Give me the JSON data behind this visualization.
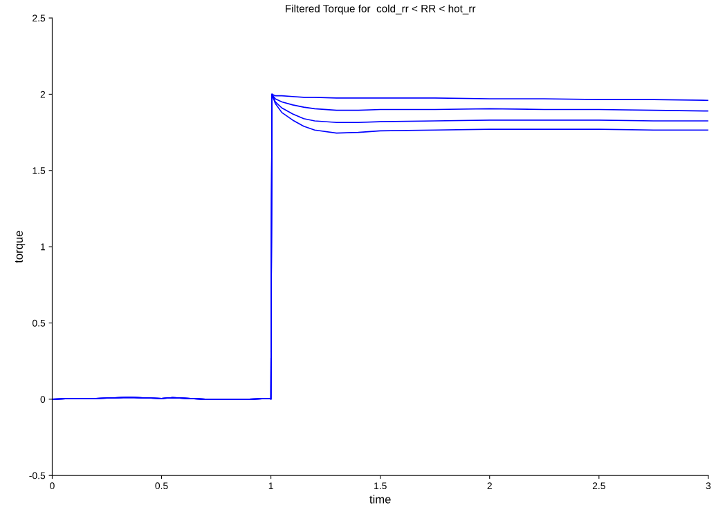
{
  "chart_data": {
    "type": "line",
    "title": "Filtered Torque for  cold_rr < RR < hot_rr",
    "xlabel": "time",
    "ylabel": "torque",
    "x": [
      0,
      0.1,
      0.2,
      0.35,
      0.5,
      0.55,
      0.7,
      0.9,
      0.999,
      1.0,
      1.003,
      1.005,
      1.02,
      1.05,
      1.1,
      1.15,
      1.2,
      1.3,
      1.4,
      1.5,
      1.75,
      2,
      2.25,
      2.5,
      2.75,
      3
    ],
    "series": [
      {
        "color": "#0000ff",
        "values": [
          0,
          0.005,
          0.005,
          0.012,
          0.005,
          0.01,
          0,
          0,
          0.005,
          0,
          1.3,
          2.0,
          1.99,
          1.99,
          1.985,
          1.98,
          1.98,
          1.975,
          1.975,
          1.975,
          1.975,
          1.97,
          1.97,
          1.965,
          1.965,
          1.96
        ]
      },
      {
        "color": "#0000ff",
        "values": [
          0,
          0.005,
          0.005,
          0.012,
          0.005,
          0.01,
          0,
          0,
          0.005,
          0,
          1.3,
          2.0,
          1.97,
          1.95,
          1.93,
          1.915,
          1.905,
          1.895,
          1.895,
          1.9,
          1.9,
          1.905,
          1.9,
          1.9,
          1.895,
          1.89
        ]
      },
      {
        "color": "#0000ff",
        "values": [
          0,
          0.005,
          0.005,
          0.012,
          0.005,
          0.01,
          0,
          0,
          0.005,
          0,
          1.3,
          2.0,
          1.95,
          1.91,
          1.87,
          1.84,
          1.825,
          1.815,
          1.815,
          1.82,
          1.825,
          1.83,
          1.83,
          1.83,
          1.825,
          1.825
        ]
      },
      {
        "color": "#0000ff",
        "values": [
          0,
          0.005,
          0.005,
          0.012,
          0.005,
          0.01,
          0,
          0,
          0.005,
          0,
          1.3,
          2.0,
          1.94,
          1.88,
          1.83,
          1.79,
          1.765,
          1.745,
          1.75,
          1.76,
          1.765,
          1.77,
          1.77,
          1.77,
          1.765,
          1.765
        ]
      }
    ],
    "xlim": [
      0,
      3
    ],
    "xticks": [
      0,
      0.5,
      1,
      1.5,
      2,
      2.5,
      3
    ],
    "ylim": [
      -0.5,
      2.5
    ],
    "yticks": [
      -0.5,
      0,
      0.5,
      1,
      1.5,
      2,
      2.5
    ],
    "grid": false,
    "legend": false,
    "marker": "none",
    "line_style": "solid"
  }
}
